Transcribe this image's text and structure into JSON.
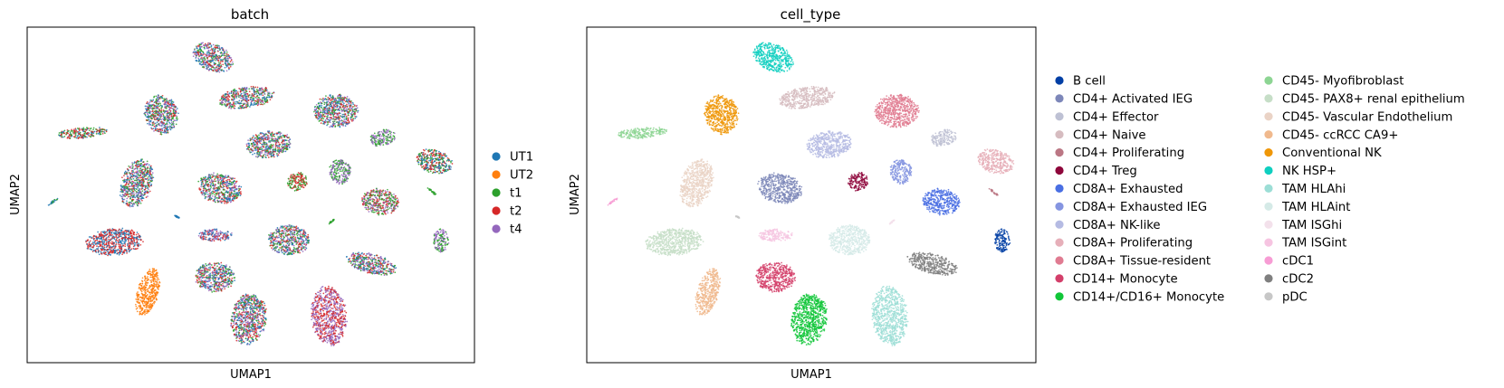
{
  "chart_data": [
    {
      "type": "scatter",
      "title": "batch",
      "xlabel": "UMAP1",
      "ylabel": "UMAP2",
      "grid": false,
      "ticks": false,
      "legend_position": "right",
      "legend": [
        {
          "label": "UT1",
          "color": "#1f77b4"
        },
        {
          "label": "UT2",
          "color": "#ff7f0e"
        },
        {
          "label": "t1",
          "color": "#2ca02c"
        },
        {
          "label": "t2",
          "color": "#d62728"
        },
        {
          "label": "t4",
          "color": "#9467bd"
        }
      ],
      "clusters": [
        {
          "cx": 0.415,
          "cy": 0.09,
          "rx": 0.048,
          "ry": 0.04,
          "rot": 25,
          "mix": [
            "#9467bd",
            "#2ca02c",
            "#1f77b4",
            "#d62728"
          ]
        },
        {
          "cx": 0.3,
          "cy": 0.26,
          "rx": 0.038,
          "ry": 0.06,
          "rot": -10,
          "mix": [
            "#9467bd",
            "#1f77b4",
            "#2ca02c",
            "#d62728"
          ]
        },
        {
          "cx": 0.49,
          "cy": 0.21,
          "rx": 0.064,
          "ry": 0.032,
          "rot": -8,
          "mix": [
            "#2ca02c",
            "#9467bd",
            "#d62728",
            "#1f77b4"
          ]
        },
        {
          "cx": 0.69,
          "cy": 0.25,
          "rx": 0.05,
          "ry": 0.05,
          "rot": 0,
          "mix": [
            "#d62728",
            "#9467bd",
            "#1f77b4",
            "#2ca02c"
          ]
        },
        {
          "cx": 0.125,
          "cy": 0.315,
          "rx": 0.058,
          "ry": 0.016,
          "rot": -5,
          "mix": [
            "#d62728",
            "#1f77b4",
            "#2ca02c"
          ]
        },
        {
          "cx": 0.54,
          "cy": 0.35,
          "rx": 0.052,
          "ry": 0.04,
          "rot": -8,
          "mix": [
            "#1f77b4",
            "#9467bd",
            "#2ca02c",
            "#d62728"
          ]
        },
        {
          "cx": 0.795,
          "cy": 0.33,
          "rx": 0.03,
          "ry": 0.024,
          "rot": -15,
          "mix": [
            "#2ca02c",
            "#9467bd"
          ]
        },
        {
          "cx": 0.91,
          "cy": 0.4,
          "rx": 0.042,
          "ry": 0.035,
          "rot": 15,
          "mix": [
            "#2ca02c",
            "#d62728",
            "#1f77b4"
          ]
        },
        {
          "cx": 0.245,
          "cy": 0.465,
          "rx": 0.035,
          "ry": 0.075,
          "rot": 20,
          "mix": [
            "#9467bd",
            "#2ca02c",
            "#1f77b4",
            "#d62728"
          ]
        },
        {
          "cx": 0.43,
          "cy": 0.48,
          "rx": 0.05,
          "ry": 0.045,
          "rot": 10,
          "mix": [
            "#9467bd",
            "#2ca02c",
            "#1f77b4",
            "#d62728"
          ]
        },
        {
          "cx": 0.605,
          "cy": 0.46,
          "rx": 0.023,
          "ry": 0.028,
          "rot": -25,
          "mix": [
            "#2ca02c",
            "#d62728"
          ]
        },
        {
          "cx": 0.7,
          "cy": 0.43,
          "rx": 0.025,
          "ry": 0.038,
          "rot": -10,
          "mix": [
            "#2ca02c",
            "#9467bd"
          ]
        },
        {
          "cx": 0.79,
          "cy": 0.52,
          "rx": 0.042,
          "ry": 0.04,
          "rot": 5,
          "mix": [
            "#2ca02c",
            "#d62728",
            "#9467bd"
          ]
        },
        {
          "cx": 0.195,
          "cy": 0.64,
          "rx": 0.065,
          "ry": 0.04,
          "rot": -5,
          "mix": [
            "#d62728",
            "#1f77b4"
          ]
        },
        {
          "cx": 0.42,
          "cy": 0.62,
          "rx": 0.04,
          "ry": 0.018,
          "rot": 0,
          "mix": [
            "#1f77b4",
            "#9467bd",
            "#d62728"
          ]
        },
        {
          "cx": 0.585,
          "cy": 0.635,
          "rx": 0.048,
          "ry": 0.045,
          "rot": 0,
          "mix": [
            "#d62728",
            "#1f77b4",
            "#2ca02c",
            "#9467bd"
          ]
        },
        {
          "cx": 0.77,
          "cy": 0.705,
          "rx": 0.058,
          "ry": 0.03,
          "rot": 15,
          "mix": [
            "#9467bd",
            "#1f77b4",
            "#2ca02c",
            "#d62728"
          ]
        },
        {
          "cx": 0.925,
          "cy": 0.635,
          "rx": 0.018,
          "ry": 0.035,
          "rot": 0,
          "mix": [
            "#2ca02c",
            "#9467bd"
          ]
        },
        {
          "cx": 0.27,
          "cy": 0.79,
          "rx": 0.025,
          "ry": 0.072,
          "rot": 15,
          "mix": [
            "#ff7f0e"
          ]
        },
        {
          "cx": 0.42,
          "cy": 0.745,
          "rx": 0.045,
          "ry": 0.045,
          "rot": 0,
          "mix": [
            "#9467bd",
            "#2ca02c",
            "#d62728",
            "#1f77b4"
          ]
        },
        {
          "cx": 0.495,
          "cy": 0.87,
          "rx": 0.04,
          "ry": 0.078,
          "rot": 10,
          "mix": [
            "#9467bd",
            "#2ca02c",
            "#d62728",
            "#1f77b4"
          ]
        },
        {
          "cx": 0.675,
          "cy": 0.86,
          "rx": 0.04,
          "ry": 0.09,
          "rot": -5,
          "mix": [
            "#d62728",
            "#9467bd"
          ]
        },
        {
          "cx": 0.058,
          "cy": 0.52,
          "rx": 0.014,
          "ry": 0.003,
          "rot": -35,
          "mix": [
            "#2ca02c",
            "#1f77b4"
          ]
        },
        {
          "cx": 0.905,
          "cy": 0.49,
          "rx": 0.013,
          "ry": 0.003,
          "rot": 40,
          "mix": [
            "#2ca02c"
          ]
        },
        {
          "cx": 0.68,
          "cy": 0.58,
          "rx": 0.008,
          "ry": 0.002,
          "rot": -40,
          "mix": [
            "#2ca02c"
          ]
        },
        {
          "cx": 0.335,
          "cy": 0.565,
          "rx": 0.006,
          "ry": 0.002,
          "rot": 30,
          "mix": [
            "#1f77b4"
          ]
        }
      ]
    },
    {
      "type": "scatter",
      "title": "cell_type",
      "xlabel": "UMAP1",
      "ylabel": "UMAP2",
      "grid": false,
      "ticks": false,
      "legend_position": "right",
      "legend": [
        {
          "label": "B cell",
          "color": "#023fa5"
        },
        {
          "label": "CD4+ Activated IEG",
          "color": "#7d87b9"
        },
        {
          "label": "CD4+ Effector",
          "color": "#bec1d4"
        },
        {
          "label": "CD4+ Naive",
          "color": "#d6bcc0"
        },
        {
          "label": "CD4+ Proliferating",
          "color": "#bb7784"
        },
        {
          "label": "CD4+ Treg",
          "color": "#8e063b"
        },
        {
          "label": "CD8A+ Exhausted",
          "color": "#4a6fe3"
        },
        {
          "label": "CD8A+ Exhausted IEG",
          "color": "#8595e1"
        },
        {
          "label": "CD8A+ NK-like",
          "color": "#b5bbe3"
        },
        {
          "label": "CD8A+ Proliferating",
          "color": "#e6afb9"
        },
        {
          "label": "CD8A+ Tissue-resident",
          "color": "#e07b91"
        },
        {
          "label": "CD14+ Monocyte",
          "color": "#d33f6a"
        },
        {
          "label": "CD14+/CD16+ Monocyte",
          "color": "#11c638"
        },
        {
          "label": "CD45- Myofibroblast",
          "color": "#8dd593"
        },
        {
          "label": "CD45- PAX8+ renal epithelium",
          "color": "#c6dec7"
        },
        {
          "label": "CD45- Vascular Endothelium",
          "color": "#ead3c6"
        },
        {
          "label": "CD45- ccRCC CA9+",
          "color": "#f0b98d"
        },
        {
          "label": "Conventional NK",
          "color": "#ef9708"
        },
        {
          "label": "NK HSP+",
          "color": "#0fcfc0"
        },
        {
          "label": "TAM HLAhi",
          "color": "#9cded6"
        },
        {
          "label": "TAM HLAint",
          "color": "#d5eae7"
        },
        {
          "label": "TAM ISGhi",
          "color": "#f3e1eb"
        },
        {
          "label": "TAM ISGint",
          "color": "#f6c4e1"
        },
        {
          "label": "cDC1",
          "color": "#f79cd4"
        },
        {
          "label": "cDC2",
          "color": "#7f7f7f"
        },
        {
          "label": "pDC",
          "color": "#c7c7c7"
        }
      ],
      "clusters": [
        {
          "cx": 0.415,
          "cy": 0.09,
          "rx": 0.048,
          "ry": 0.04,
          "rot": 25,
          "mix": [
            "#0fcfc0"
          ]
        },
        {
          "cx": 0.3,
          "cy": 0.26,
          "rx": 0.038,
          "ry": 0.06,
          "rot": -10,
          "mix": [
            "#ef9708"
          ]
        },
        {
          "cx": 0.49,
          "cy": 0.21,
          "rx": 0.064,
          "ry": 0.032,
          "rot": -8,
          "mix": [
            "#d6bcc0"
          ]
        },
        {
          "cx": 0.69,
          "cy": 0.25,
          "rx": 0.05,
          "ry": 0.05,
          "rot": 0,
          "mix": [
            "#e07b91"
          ]
        },
        {
          "cx": 0.125,
          "cy": 0.315,
          "rx": 0.058,
          "ry": 0.016,
          "rot": -5,
          "mix": [
            "#8dd593"
          ]
        },
        {
          "cx": 0.54,
          "cy": 0.35,
          "rx": 0.052,
          "ry": 0.04,
          "rot": -8,
          "mix": [
            "#b5bbe3"
          ]
        },
        {
          "cx": 0.795,
          "cy": 0.33,
          "rx": 0.03,
          "ry": 0.024,
          "rot": -15,
          "mix": [
            "#bec1d4"
          ]
        },
        {
          "cx": 0.91,
          "cy": 0.4,
          "rx": 0.042,
          "ry": 0.035,
          "rot": 15,
          "mix": [
            "#e6afb9"
          ]
        },
        {
          "cx": 0.245,
          "cy": 0.465,
          "rx": 0.035,
          "ry": 0.075,
          "rot": 20,
          "mix": [
            "#ead3c6"
          ]
        },
        {
          "cx": 0.43,
          "cy": 0.48,
          "rx": 0.05,
          "ry": 0.045,
          "rot": 10,
          "mix": [
            "#7d87b9"
          ]
        },
        {
          "cx": 0.605,
          "cy": 0.46,
          "rx": 0.023,
          "ry": 0.028,
          "rot": -25,
          "mix": [
            "#8e063b"
          ]
        },
        {
          "cx": 0.7,
          "cy": 0.43,
          "rx": 0.025,
          "ry": 0.038,
          "rot": -10,
          "mix": [
            "#8595e1"
          ]
        },
        {
          "cx": 0.79,
          "cy": 0.52,
          "rx": 0.042,
          "ry": 0.04,
          "rot": 5,
          "mix": [
            "#4a6fe3"
          ]
        },
        {
          "cx": 0.195,
          "cy": 0.64,
          "rx": 0.065,
          "ry": 0.04,
          "rot": -5,
          "mix": [
            "#c6dec7"
          ]
        },
        {
          "cx": 0.42,
          "cy": 0.62,
          "rx": 0.04,
          "ry": 0.018,
          "rot": 0,
          "mix": [
            "#f6c4e1"
          ]
        },
        {
          "cx": 0.585,
          "cy": 0.635,
          "rx": 0.048,
          "ry": 0.045,
          "rot": 0,
          "mix": [
            "#d5eae7"
          ]
        },
        {
          "cx": 0.77,
          "cy": 0.705,
          "rx": 0.058,
          "ry": 0.03,
          "rot": 15,
          "mix": [
            "#7f7f7f"
          ]
        },
        {
          "cx": 0.925,
          "cy": 0.635,
          "rx": 0.018,
          "ry": 0.035,
          "rot": 0,
          "mix": [
            "#023fa5"
          ]
        },
        {
          "cx": 0.27,
          "cy": 0.79,
          "rx": 0.025,
          "ry": 0.072,
          "rot": 15,
          "mix": [
            "#f0b98d"
          ]
        },
        {
          "cx": 0.42,
          "cy": 0.745,
          "rx": 0.045,
          "ry": 0.045,
          "rot": 0,
          "mix": [
            "#d33f6a"
          ]
        },
        {
          "cx": 0.495,
          "cy": 0.87,
          "rx": 0.04,
          "ry": 0.078,
          "rot": 10,
          "mix": [
            "#11c638"
          ]
        },
        {
          "cx": 0.675,
          "cy": 0.86,
          "rx": 0.04,
          "ry": 0.09,
          "rot": -5,
          "mix": [
            "#9cded6"
          ]
        },
        {
          "cx": 0.058,
          "cy": 0.52,
          "rx": 0.014,
          "ry": 0.003,
          "rot": -35,
          "mix": [
            "#f79cd4"
          ]
        },
        {
          "cx": 0.905,
          "cy": 0.49,
          "rx": 0.013,
          "ry": 0.003,
          "rot": 40,
          "mix": [
            "#bb7784"
          ]
        },
        {
          "cx": 0.68,
          "cy": 0.58,
          "rx": 0.008,
          "ry": 0.002,
          "rot": -40,
          "mix": [
            "#f3e1eb"
          ]
        },
        {
          "cx": 0.335,
          "cy": 0.565,
          "rx": 0.006,
          "ry": 0.002,
          "rot": 30,
          "mix": [
            "#c7c7c7"
          ]
        }
      ]
    }
  ]
}
